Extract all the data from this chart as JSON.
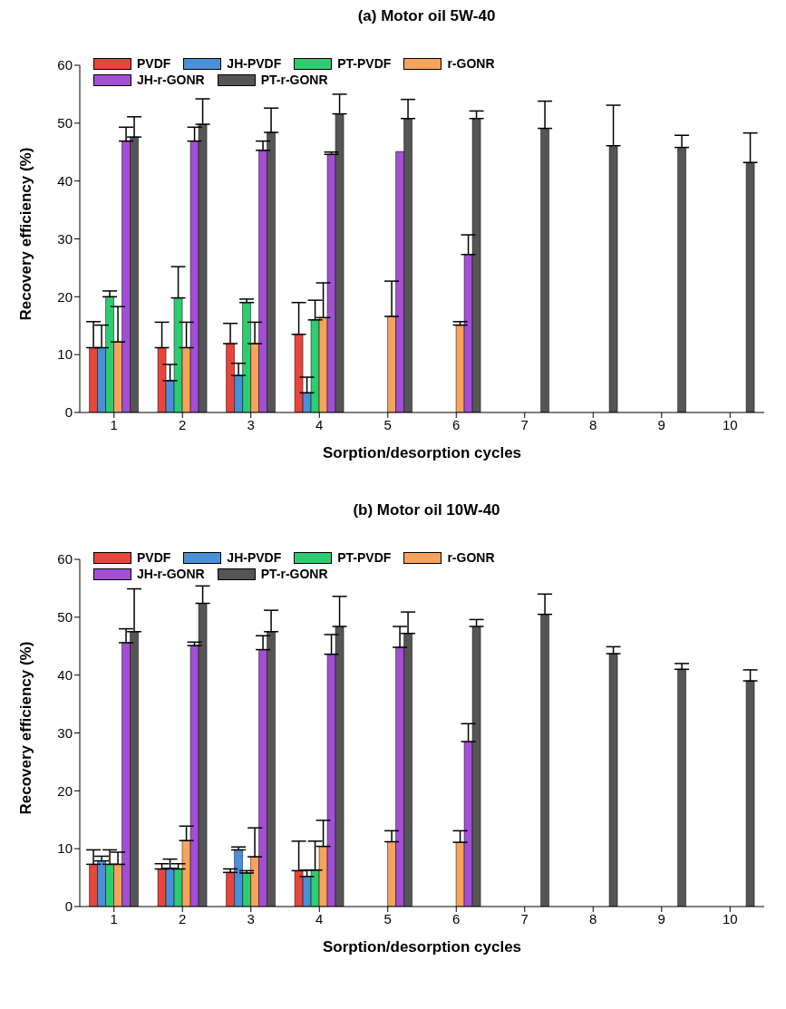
{
  "chart_data": [
    {
      "type": "bar",
      "title": "(a) Motor oil 5W-40",
      "xlabel": "Sorption/desorption cycles",
      "ylabel": "Recovery efficiency (%)",
      "categories": [
        "1",
        "2",
        "3",
        "4",
        "5",
        "6",
        "7",
        "8",
        "9",
        "10"
      ],
      "ylim": [
        0,
        60
      ],
      "yticks": [
        0,
        10,
        20,
        30,
        40,
        50,
        60
      ],
      "grid": false,
      "legend": "top left",
      "series": [
        {
          "name": "PVDF",
          "color": "#e8453c",
          "values": [
            11.2,
            11.2,
            11.9,
            13.5,
            null,
            null,
            null,
            null,
            null,
            null
          ],
          "errors": [
            [
              11.2,
              15.7
            ],
            [
              11.2,
              15.6
            ],
            [
              11.9,
              15.4
            ],
            [
              13.5,
              19.0
            ],
            null,
            null,
            null,
            null,
            null,
            null
          ]
        },
        {
          "name": "JH-PVDF",
          "color": "#4a90d9",
          "values": [
            11.2,
            5.5,
            6.4,
            3.4,
            null,
            null,
            null,
            null,
            null,
            null
          ],
          "errors": [
            [
              11.2,
              15.1
            ],
            [
              5.5,
              8.3
            ],
            [
              6.4,
              8.5
            ],
            [
              3.4,
              6.1
            ],
            null,
            null,
            null,
            null,
            null,
            null
          ]
        },
        {
          "name": "PT-PVDF",
          "color": "#2ecc71",
          "values": [
            20.0,
            19.8,
            19.0,
            16.0,
            null,
            null,
            null,
            null,
            null,
            null
          ],
          "errors": [
            [
              20.0,
              21.0
            ],
            [
              19.8,
              25.2
            ],
            [
              19.0,
              19.6
            ],
            [
              16.0,
              19.4
            ],
            null,
            null,
            null,
            null,
            null,
            null
          ]
        },
        {
          "name": "r-GONR",
          "color": "#f7a35c",
          "values": [
            12.2,
            11.2,
            11.9,
            16.4,
            16.6,
            15.1,
            null,
            null,
            null,
            null
          ],
          "errors": [
            [
              12.2,
              18.3
            ],
            [
              11.2,
              15.6
            ],
            [
              11.9,
              15.6
            ],
            [
              16.4,
              22.4
            ],
            [
              16.6,
              22.7
            ],
            [
              15.1,
              15.7
            ],
            null,
            null,
            null,
            null
          ]
        },
        {
          "name": "JH-r-GONR",
          "color": "#a24fd6",
          "values": [
            46.9,
            46.9,
            45.3,
            44.6,
            45.1,
            27.3,
            null,
            null,
            null,
            null
          ],
          "errors": [
            [
              46.9,
              49.3
            ],
            [
              46.9,
              49.3
            ],
            [
              45.3,
              46.9
            ],
            [
              44.6,
              45.0
            ],
            null,
            [
              27.3,
              30.7
            ],
            null,
            null,
            null,
            null
          ]
        },
        {
          "name": "PT-r-GONR",
          "color": "#555555",
          "values": [
            47.6,
            49.8,
            48.4,
            51.6,
            50.8,
            50.8,
            49.1,
            46.1,
            45.8,
            43.2
          ],
          "errors": [
            [
              47.6,
              51.1
            ],
            [
              49.8,
              54.2
            ],
            [
              48.4,
              52.6
            ],
            [
              51.6,
              55.0
            ],
            [
              50.8,
              54.1
            ],
            [
              50.8,
              52.1
            ],
            [
              49.1,
              53.8
            ],
            [
              46.1,
              53.1
            ],
            [
              45.8,
              47.9
            ],
            [
              43.2,
              48.3
            ]
          ]
        }
      ]
    },
    {
      "type": "bar",
      "title": "(b) Motor oil 10W-40",
      "xlabel": "Sorption/desorption cycles",
      "ylabel": "Recovery efficiency (%)",
      "categories": [
        "1",
        "2",
        "3",
        "4",
        "5",
        "6",
        "7",
        "8",
        "9",
        "10"
      ],
      "ylim": [
        0,
        60
      ],
      "yticks": [
        0,
        10,
        20,
        30,
        40,
        50,
        60
      ],
      "grid": false,
      "legend": "top left",
      "series": [
        {
          "name": "PVDF",
          "color": "#e8453c",
          "values": [
            7.3,
            6.5,
            5.9,
            6.2,
            null,
            null,
            null,
            null,
            null,
            null
          ],
          "errors": [
            [
              7.3,
              9.8
            ],
            [
              6.5,
              7.4
            ],
            [
              5.9,
              6.5
            ],
            [
              6.2,
              11.3
            ],
            null,
            null,
            null,
            null,
            null,
            null
          ]
        },
        {
          "name": "JH-PVDF",
          "color": "#4a90d9",
          "values": [
            7.9,
            6.6,
            9.8,
            5.2,
            null,
            null,
            null,
            null,
            null,
            null
          ],
          "errors": [
            [
              7.9,
              8.7
            ],
            [
              6.6,
              8.2
            ],
            [
              9.8,
              10.3
            ],
            [
              5.2,
              6.3
            ],
            null,
            null,
            null,
            null,
            null,
            null
          ]
        },
        {
          "name": "PT-PVDF",
          "color": "#2ecc71",
          "values": [
            7.3,
            6.5,
            5.8,
            6.3,
            null,
            null,
            null,
            null,
            null,
            null
          ],
          "errors": [
            [
              7.3,
              9.8
            ],
            [
              6.5,
              7.4
            ],
            [
              5.8,
              6.2
            ],
            [
              6.3,
              11.3
            ],
            null,
            null,
            null,
            null,
            null,
            null
          ]
        },
        {
          "name": "r-GONR",
          "color": "#f7a35c",
          "values": [
            7.3,
            11.4,
            8.6,
            10.4,
            11.2,
            11.1,
            null,
            null,
            null,
            null
          ],
          "errors": [
            [
              7.3,
              9.4
            ],
            [
              11.4,
              13.9
            ],
            [
              8.6,
              13.6
            ],
            [
              10.4,
              14.9
            ],
            [
              11.2,
              13.1
            ],
            [
              11.1,
              13.1
            ],
            null,
            null,
            null,
            null
          ]
        },
        {
          "name": "JH-r-GONR",
          "color": "#a24fd6",
          "values": [
            45.6,
            45.1,
            44.4,
            43.6,
            44.8,
            28.5,
            null,
            null,
            null,
            null
          ],
          "errors": [
            [
              45.6,
              48.0
            ],
            [
              45.1,
              45.7
            ],
            [
              44.4,
              46.8
            ],
            [
              43.6,
              47.0
            ],
            [
              44.8,
              48.4
            ],
            [
              28.5,
              31.6
            ],
            null,
            null,
            null,
            null
          ]
        },
        {
          "name": "PT-r-GONR",
          "color": "#555555",
          "values": [
            47.5,
            52.4,
            47.5,
            48.4,
            47.2,
            48.4,
            50.5,
            43.7,
            41.0,
            39.0
          ],
          "errors": [
            [
              47.5,
              54.9
            ],
            [
              52.4,
              55.4
            ],
            [
              47.5,
              51.2
            ],
            [
              48.4,
              53.6
            ],
            [
              47.2,
              50.9
            ],
            [
              48.4,
              49.6
            ],
            [
              50.5,
              54.0
            ],
            [
              43.7,
              44.9
            ],
            [
              41.0,
              42.0
            ],
            [
              39.0,
              40.9
            ]
          ]
        }
      ]
    }
  ]
}
